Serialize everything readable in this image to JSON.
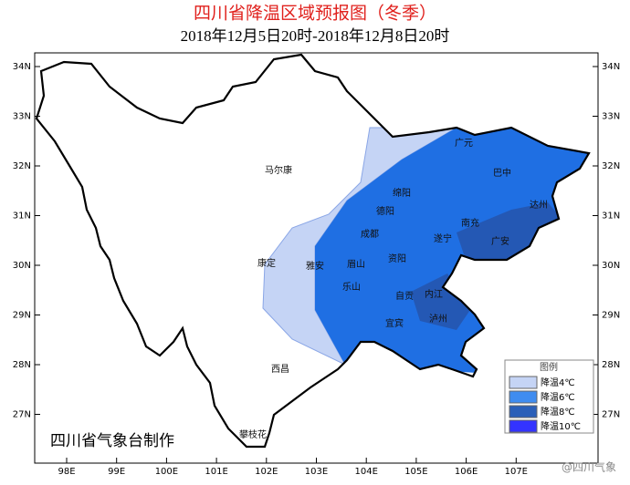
{
  "title": "四川省降温区域预报图（冬季）",
  "subtitle": "2018年12月5日20时-2018年12月8日20时",
  "lat_labels": [
    "34N",
    "33N",
    "32N",
    "31N",
    "30N",
    "29N",
    "28N",
    "27N"
  ],
  "lon_labels": [
    "98E",
    "99E",
    "100E",
    "101E",
    "102E",
    "103E",
    "104E",
    "105E",
    "106E",
    "107E"
  ],
  "cities": [
    "马尔康",
    "康定",
    "西昌",
    "攀枝花",
    "广元",
    "巴中",
    "绵阳",
    "德阳",
    "达州",
    "南充",
    "成都",
    "遂宁",
    "广安",
    "雅安",
    "眉山",
    "资阳",
    "乐山",
    "内江",
    "自贡",
    "宜宾",
    "泸州"
  ],
  "legend": {
    "title": "图例",
    "items": [
      "降温4℃",
      "降温6℃",
      "降温8℃",
      "降温10℃"
    ]
  },
  "credit": "四川省气象台制作",
  "watermark": "@四川气象"
}
